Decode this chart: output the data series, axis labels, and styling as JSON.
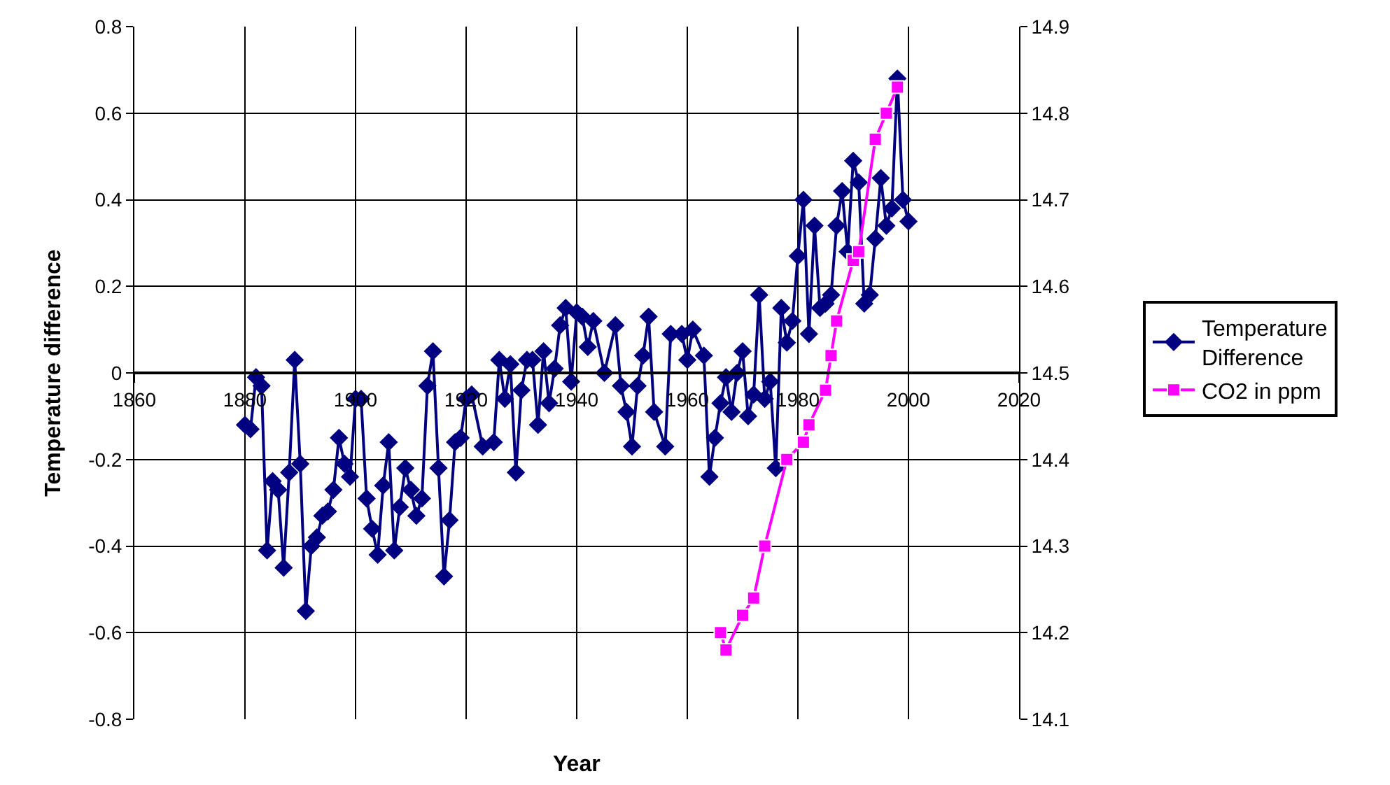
{
  "chart_data": {
    "type": "line",
    "xlabel": "Year",
    "ylabel": "Temperature difference",
    "xlim": [
      1860,
      2020
    ],
    "xticks": [
      1860,
      1880,
      1900,
      1920,
      1940,
      1960,
      1980,
      2000,
      2020
    ],
    "ylim": [
      -0.8,
      0.8
    ],
    "yticks": [
      -0.8,
      -0.6,
      -0.4,
      -0.2,
      0,
      0.2,
      0.4,
      0.6,
      0.8
    ],
    "y2lim": [
      14.1,
      14.9
    ],
    "y2ticks": [
      14.1,
      14.2,
      14.3,
      14.4,
      14.5,
      14.6,
      14.7,
      14.8,
      14.9
    ],
    "grid": true,
    "legend": "right",
    "line_style": "solid",
    "series": [
      {
        "name": "Temperature Difference",
        "color": "#000080",
        "marker": "diamond",
        "x": [
          1880,
          1881,
          1882,
          1883,
          1884,
          1885,
          1886,
          1887,
          1888,
          1889,
          1890,
          1891,
          1892,
          1893,
          1894,
          1895,
          1896,
          1897,
          1898,
          1899,
          1900,
          1901,
          1902,
          1903,
          1904,
          1905,
          1906,
          1907,
          1908,
          1909,
          1910,
          1911,
          1912,
          1913,
          1914,
          1915,
          1916,
          1917,
          1918,
          1919,
          1920,
          1921,
          1923,
          1925,
          1926,
          1927,
          1928,
          1929,
          1930,
          1931,
          1932,
          1933,
          1934,
          1935,
          1936,
          1937,
          1938,
          1939,
          1940,
          1941,
          1942,
          1943,
          1945,
          1947,
          1948,
          1949,
          1950,
          1951,
          1952,
          1953,
          1954,
          1956,
          1957,
          1959,
          1960,
          1961,
          1963,
          1964,
          1965,
          1966,
          1967,
          1968,
          1969,
          1970,
          1971,
          1972,
          1973,
          1974,
          1975,
          1976,
          1977,
          1978,
          1979,
          1980,
          1981,
          1982,
          1983,
          1984,
          1985,
          1986,
          1987,
          1988,
          1989,
          1990,
          1991,
          1992,
          1993,
          1994,
          1995,
          1996,
          1997,
          1998,
          1999,
          2000
        ],
        "values": [
          -0.12,
          -0.13,
          -0.01,
          -0.03,
          -0.41,
          -0.25,
          -0.27,
          -0.45,
          -0.23,
          0.03,
          -0.21,
          -0.55,
          -0.4,
          -0.38,
          -0.33,
          -0.32,
          -0.27,
          -0.15,
          -0.21,
          -0.24,
          -0.06,
          -0.06,
          -0.29,
          -0.36,
          -0.42,
          -0.26,
          -0.16,
          -0.41,
          -0.31,
          -0.22,
          -0.27,
          -0.33,
          -0.29,
          -0.03,
          0.05,
          -0.22,
          -0.47,
          -0.34,
          -0.16,
          -0.15,
          -0.06,
          -0.05,
          -0.17,
          -0.16,
          0.03,
          -0.06,
          0.02,
          -0.23,
          -0.04,
          0.03,
          0.03,
          -0.12,
          0.05,
          -0.07,
          0.01,
          0.11,
          0.15,
          -0.02,
          0.14,
          0.13,
          0.06,
          0.12,
          0.0,
          0.11,
          -0.03,
          -0.09,
          -0.17,
          -0.03,
          0.04,
          0.13,
          -0.09,
          -0.17,
          0.09,
          0.09,
          0.03,
          0.1,
          0.04,
          -0.24,
          -0.15,
          -0.07,
          -0.01,
          -0.09,
          0.0,
          0.05,
          -0.1,
          -0.05,
          0.18,
          -0.06,
          -0.02,
          -0.22,
          0.15,
          0.07,
          0.12,
          0.27,
          0.4,
          0.09,
          0.34,
          0.15,
          0.16,
          0.18,
          0.34,
          0.42,
          0.28,
          0.49,
          0.44,
          0.16,
          0.18,
          0.31,
          0.45,
          0.34,
          0.38,
          0.68,
          0.4,
          0.35
        ]
      },
      {
        "name": "CO2 in ppm",
        "color": "#ff00ff",
        "marker": "square",
        "axis": "y2",
        "x": [
          1966,
          1967,
          1970,
          1972,
          1974,
          1978,
          1981,
          1982,
          1985,
          1986,
          1987,
          1990,
          1991,
          1994,
          1996,
          1998
        ],
        "values": [
          14.2,
          14.18,
          14.22,
          14.24,
          14.3,
          14.4,
          14.42,
          14.44,
          14.48,
          14.52,
          14.56,
          14.63,
          14.64,
          14.77,
          14.8,
          14.83
        ]
      }
    ]
  }
}
